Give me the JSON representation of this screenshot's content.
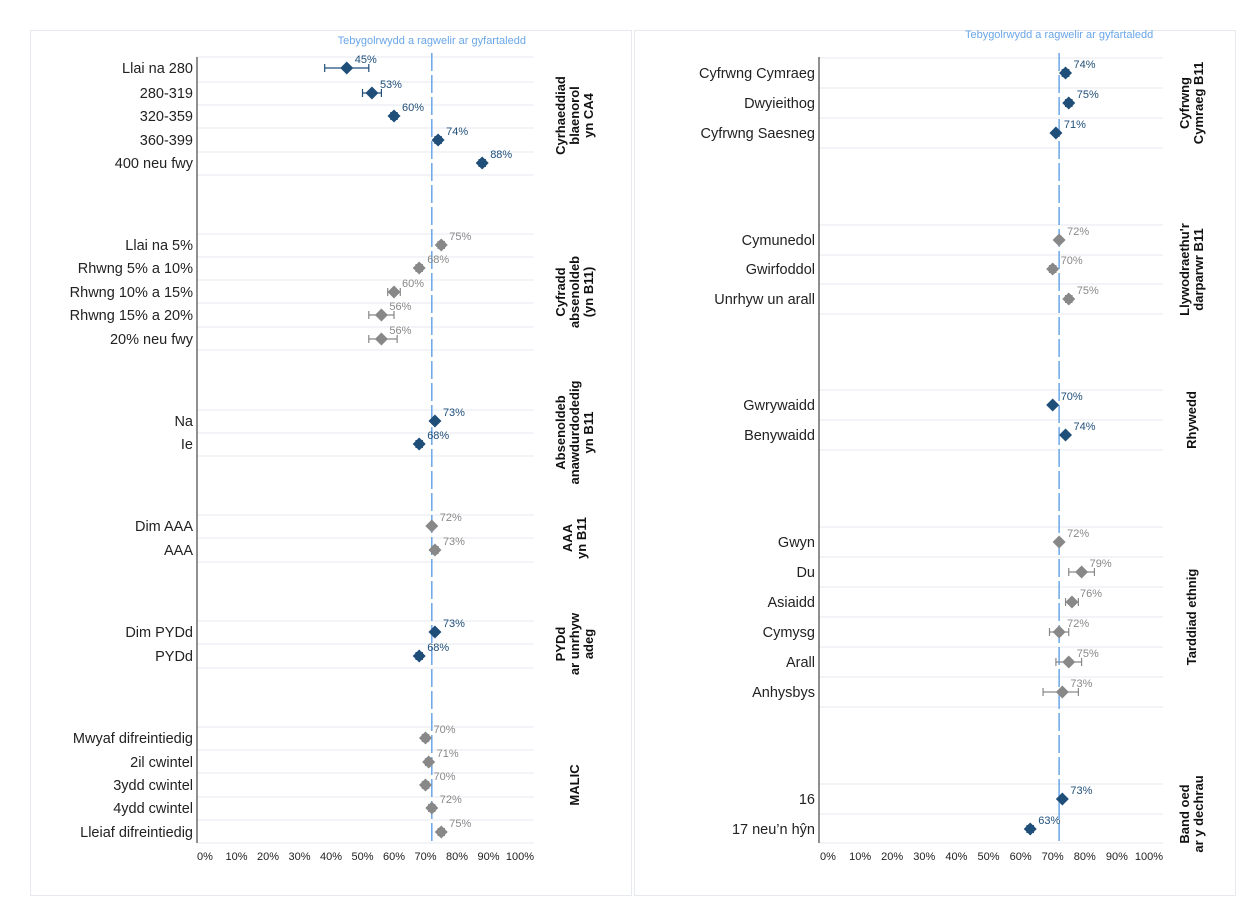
{
  "chart_data": [
    {
      "type": "dot",
      "title": "",
      "reference_line": {
        "value": 72,
        "label": "Tebygolrwydd a ragwelir ar gyfartaledd",
        "color": "#6aa6e8"
      },
      "xlim": [
        0,
        100
      ],
      "x_ticks": [
        "0%",
        "10%",
        "20%",
        "30%",
        "40%",
        "50%",
        "60%",
        "70%",
        "80%",
        "90%",
        "100%"
      ],
      "groups": [
        {
          "label": [
            "Cyrhaeddiad",
            "blaenorol",
            "yn CA4"
          ],
          "color": "#1f4e79",
          "items": [
            {
              "label": "Llai na 280",
              "value": 45,
              "value_label": "45%",
              "ci": [
                38,
                52
              ]
            },
            {
              "label": "280-319",
              "value": 53,
              "value_label": "53%",
              "ci": [
                50,
                56
              ]
            },
            {
              "label": "320-359",
              "value": 60,
              "value_label": "60%",
              "ci": [
                59,
                61
              ]
            },
            {
              "label": "360-399",
              "value": 74,
              "value_label": "74%",
              "ci": [
                73,
                75
              ]
            },
            {
              "label": "400 neu fwy",
              "value": 88,
              "value_label": "88%",
              "ci": [
                87,
                89
              ]
            }
          ]
        },
        {
          "label": [
            "Cyfradd",
            "absenoldeb",
            "(yn B11)"
          ],
          "color": "#888888",
          "items": [
            {
              "label": "Llai na 5%",
              "value": 75,
              "value_label": "75%",
              "ci": [
                74,
                76
              ]
            },
            {
              "label": "Rhwng 5% a 10%",
              "value": 68,
              "value_label": "68%",
              "ci": [
                67,
                69
              ]
            },
            {
              "label": "Rhwng 10% a 15%",
              "value": 60,
              "value_label": "60%",
              "ci": [
                58,
                62
              ]
            },
            {
              "label": "Rhwng 15% a 20%",
              "value": 56,
              "value_label": "56%",
              "ci": [
                52,
                60
              ]
            },
            {
              "label": "20% neu fwy",
              "value": 56,
              "value_label": "56%",
              "ci": [
                52,
                61
              ]
            }
          ]
        },
        {
          "label": [
            "Absenoldeb",
            "anawdurdodedig",
            "yn B11"
          ],
          "color": "#1f4e79",
          "items": [
            {
              "label": "Na",
              "value": 73,
              "value_label": "73%",
              "ci": [
                72.5,
                73.5
              ]
            },
            {
              "label": "Ie",
              "value": 68,
              "value_label": "68%",
              "ci": [
                67,
                69
              ]
            }
          ]
        },
        {
          "label": [
            "AAA",
            "yn B11"
          ],
          "color": "#888888",
          "items": [
            {
              "label": "Dim AAA",
              "value": 72,
              "value_label": "72%",
              "ci": [
                71.5,
                72.5
              ]
            },
            {
              "label": "AAA",
              "value": 73,
              "value_label": "73%",
              "ci": [
                72,
                74
              ]
            }
          ]
        },
        {
          "label": [
            "PYDd",
            "ar unrhyw",
            "adeg"
          ],
          "color": "#1f4e79",
          "items": [
            {
              "label": "Dim PYDd",
              "value": 73,
              "value_label": "73%",
              "ci": [
                72.5,
                73.5
              ]
            },
            {
              "label": "PYDd",
              "value": 68,
              "value_label": "68%",
              "ci": [
                67,
                69
              ]
            }
          ]
        },
        {
          "label": [
            "MALIC"
          ],
          "color": "#888888",
          "items": [
            {
              "label": "Mwyaf difreintiedig",
              "value": 70,
              "value_label": "70%",
              "ci": [
                69,
                71
              ]
            },
            {
              "label": "2il cwintel",
              "value": 71,
              "value_label": "71%",
              "ci": [
                70,
                72
              ]
            },
            {
              "label": "3ydd cwintel",
              "value": 70,
              "value_label": "70%",
              "ci": [
                69,
                71
              ]
            },
            {
              "label": "4ydd cwintel",
              "value": 72,
              "value_label": "72%",
              "ci": [
                71,
                73
              ]
            },
            {
              "label": "Lleiaf difreintiedig",
              "value": 75,
              "value_label": "75%",
              "ci": [
                74,
                76
              ]
            }
          ]
        }
      ]
    },
    {
      "type": "dot",
      "title": "",
      "reference_line": {
        "value": 72,
        "label": "Tebygolrwydd a ragwelir ar gyfartaledd",
        "color": "#6aa6e8"
      },
      "xlim": [
        0,
        100
      ],
      "x_ticks": [
        "0%",
        "10%",
        "20%",
        "30%",
        "40%",
        "50%",
        "60%",
        "70%",
        "80%",
        "90%",
        "100%"
      ],
      "groups": [
        {
          "label": [
            "Cyfrwng",
            "Cymraeg B11"
          ],
          "color": "#1f4e79",
          "items": [
            {
              "label": "Cyfrwng Cymraeg",
              "value": 74,
              "value_label": "74%",
              "ci": [
                73,
                75
              ]
            },
            {
              "label": "Dwyieithog",
              "value": 75,
              "value_label": "75%",
              "ci": [
                74,
                76
              ]
            },
            {
              "label": "Cyfrwng Saesneg",
              "value": 71,
              "value_label": "71%",
              "ci": [
                70.5,
                71.5
              ]
            }
          ]
        },
        {
          "label": [
            "Llywodraethu'r",
            "darparwr B11"
          ],
          "color": "#888888",
          "items": [
            {
              "label": "Cymunedol",
              "value": 72,
              "value_label": "72%",
              "ci": [
                71.5,
                72.5
              ]
            },
            {
              "label": "Gwirfoddol",
              "value": 70,
              "value_label": "70%",
              "ci": [
                69,
                71
              ]
            },
            {
              "label": "Unrhyw un arall",
              "value": 75,
              "value_label": "75%",
              "ci": [
                74,
                76
              ]
            }
          ]
        },
        {
          "label": [
            "Rhywedd"
          ],
          "color": "#1f4e79",
          "items": [
            {
              "label": "Gwrywaidd",
              "value": 70,
              "value_label": "70%",
              "ci": [
                69.5,
                70.5
              ]
            },
            {
              "label": "Benywaidd",
              "value": 74,
              "value_label": "74%",
              "ci": [
                73.5,
                74.5
              ]
            }
          ]
        },
        {
          "label": [
            "Tarddiad ethnig"
          ],
          "color": "#888888",
          "items": [
            {
              "label": "Gwyn",
              "value": 72,
              "value_label": "72%",
              "ci": [
                71.5,
                72.5
              ]
            },
            {
              "label": "Du",
              "value": 79,
              "value_label": "79%",
              "ci": [
                75,
                83
              ]
            },
            {
              "label": "Asiaidd",
              "value": 76,
              "value_label": "76%",
              "ci": [
                74,
                78
              ]
            },
            {
              "label": "Cymysg",
              "value": 72,
              "value_label": "72%",
              "ci": [
                69,
                75
              ]
            },
            {
              "label": "Arall",
              "value": 75,
              "value_label": "75%",
              "ci": [
                71,
                79
              ]
            },
            {
              "label": "Anhysbys",
              "value": 73,
              "value_label": "73%",
              "ci": [
                67,
                78
              ]
            }
          ]
        },
        {
          "label": [
            "Band oed",
            "ar y dechrau"
          ],
          "color": "#1f4e79",
          "items": [
            {
              "label": "16",
              "value": 73,
              "value_label": "73%",
              "ci": [
                72.5,
                73.5
              ]
            },
            {
              "label": "17 neu’n hŷn",
              "value": 63,
              "value_label": "63%",
              "ci": [
                62,
                64
              ]
            }
          ]
        }
      ]
    }
  ]
}
